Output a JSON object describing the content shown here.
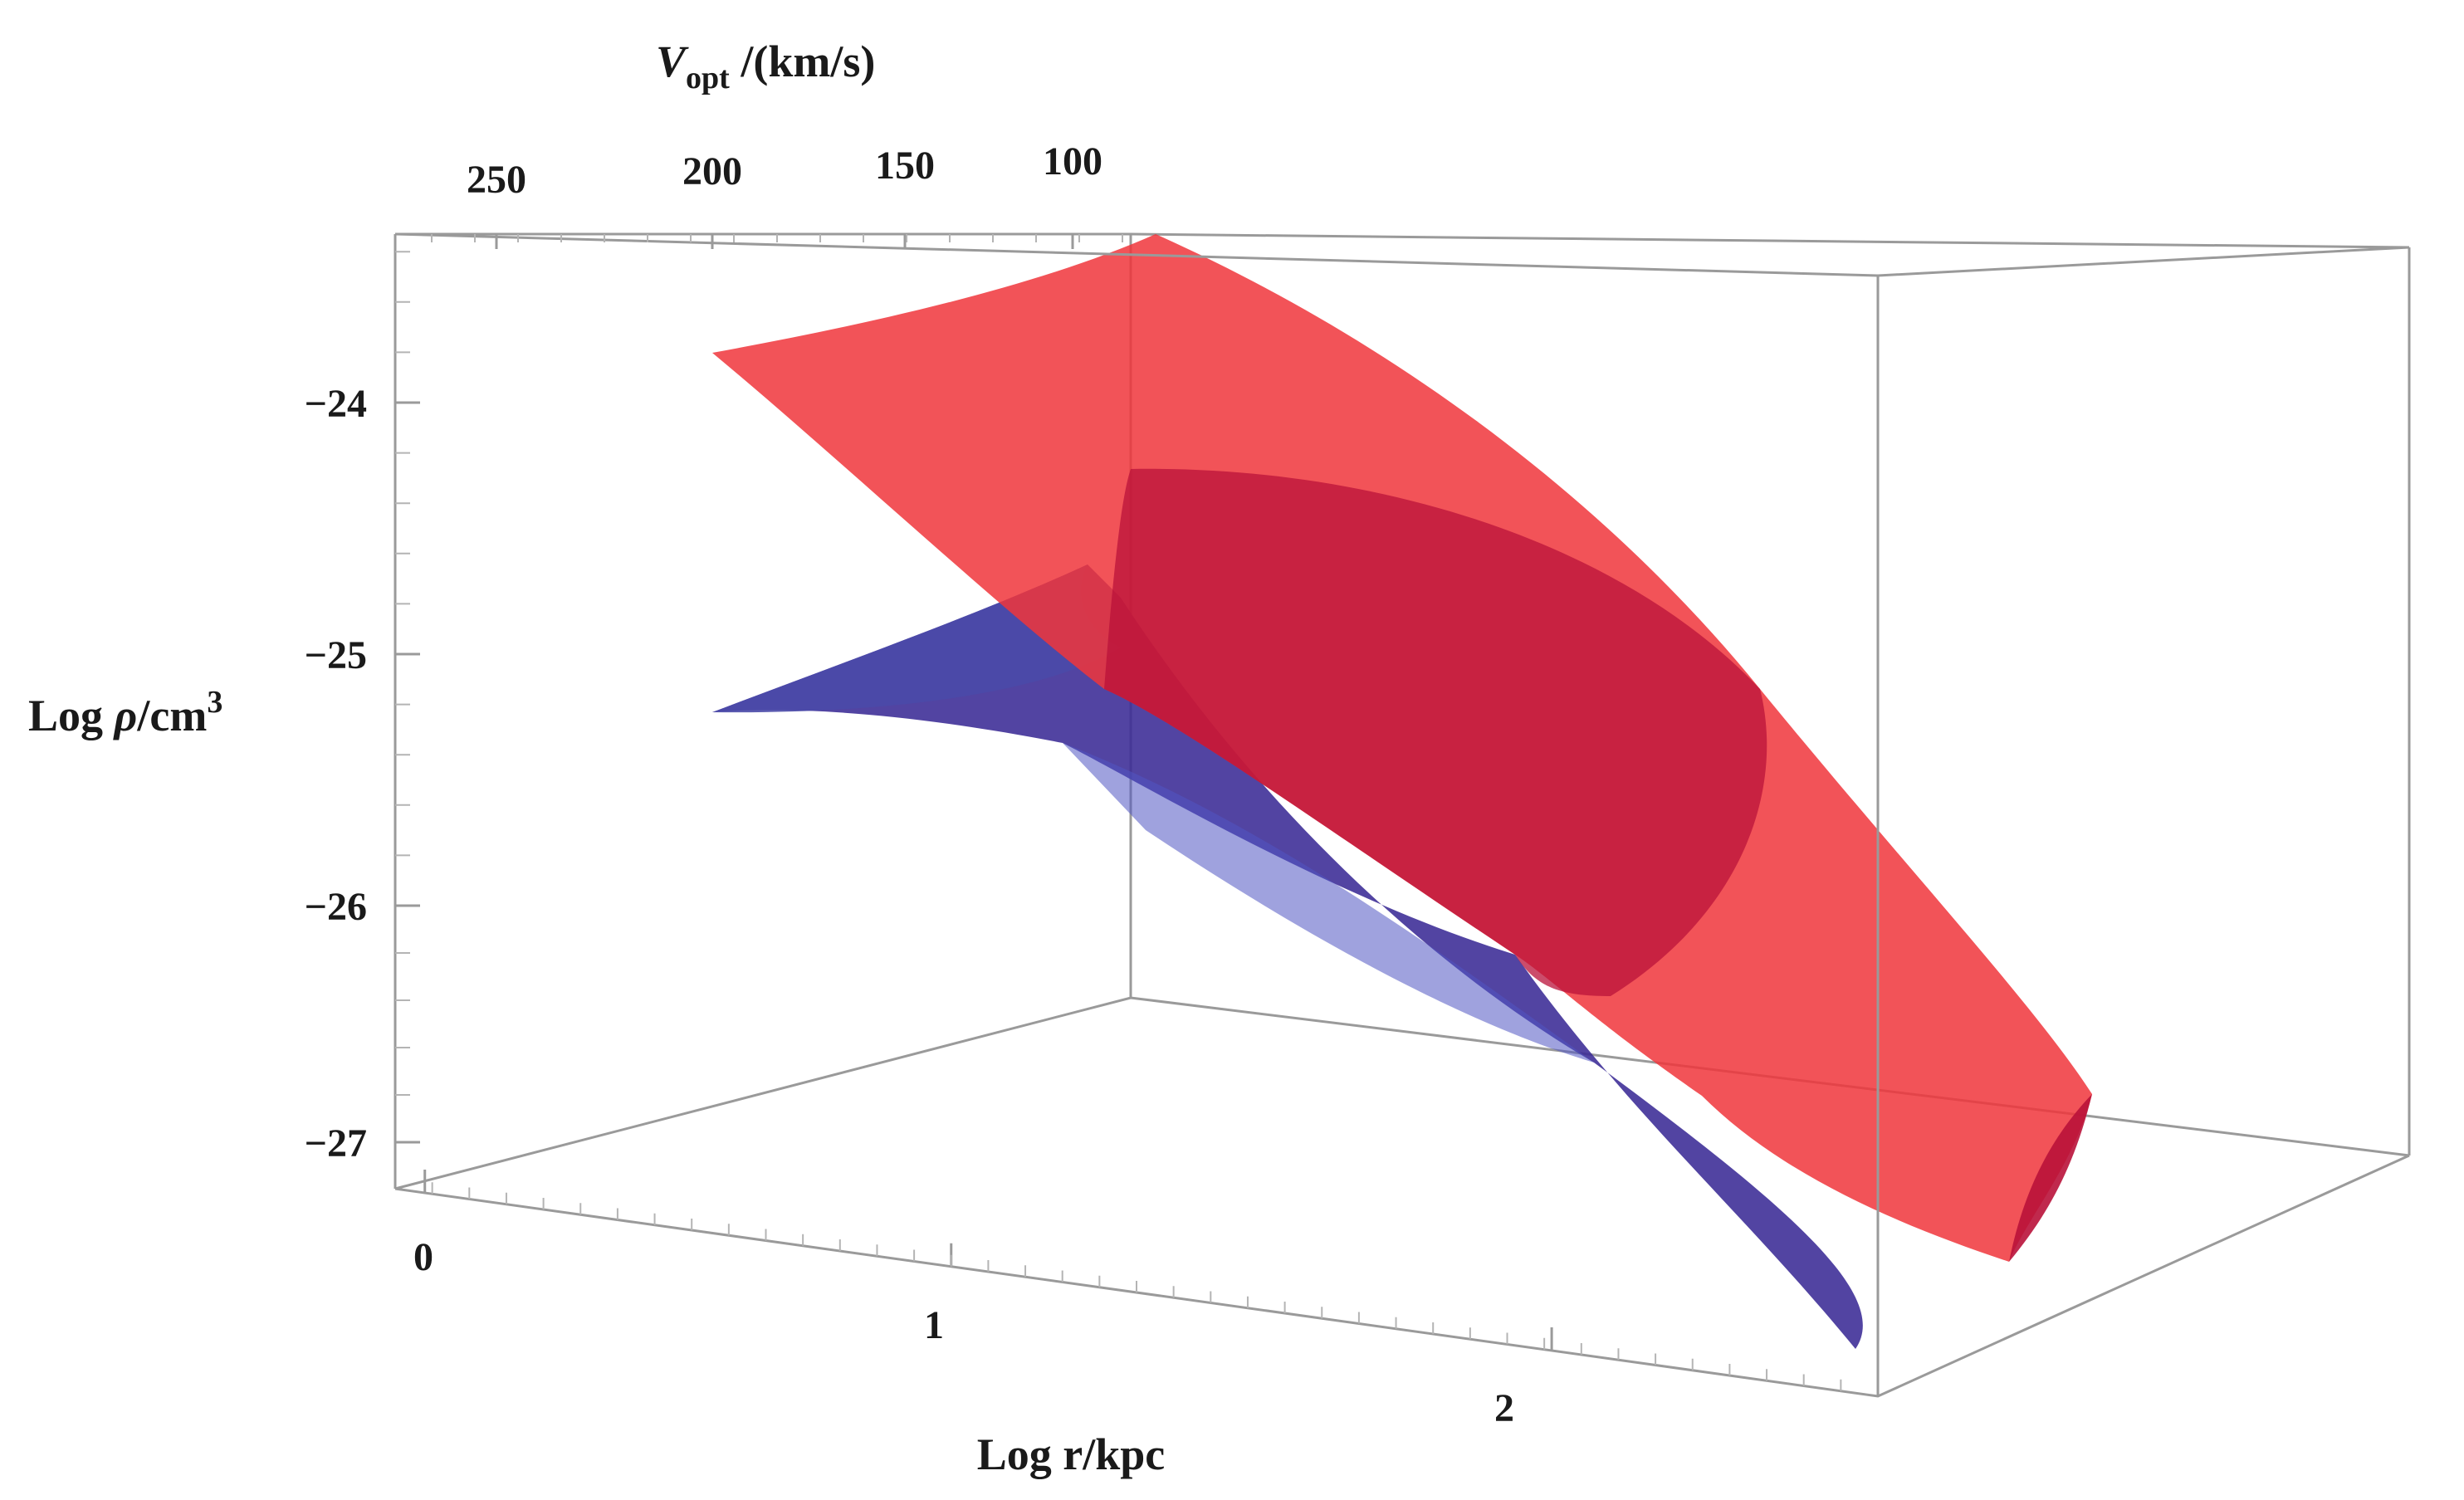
{
  "chart_data": {
    "type": "surface3d",
    "title": "",
    "axes": {
      "x": {
        "label": "Log r/kpc",
        "ticks": [
          "0",
          "1",
          "2"
        ],
        "range": [
          0,
          2.5
        ]
      },
      "y": {
        "label_main": "V",
        "label_sub": "opt",
        "label_unit": " /(km/s)",
        "ticks": [
          "250",
          "200",
          "150",
          "100"
        ],
        "range": [
          80,
          270
        ]
      },
      "z": {
        "label_main": "Log ",
        "label_rho": "ρ",
        "label_unit": "/cm",
        "label_sup": "3",
        "ticks": [
          "−24",
          "−25",
          "−26",
          "−27"
        ],
        "range": [
          -27.2,
          -23.4
        ]
      }
    },
    "series": [
      {
        "color": "#f0353b",
        "opacity": 0.85,
        "z_at_corners": {
          "near_far_corner": -23.8,
          "peak": -23.4,
          "far_end": -26.8
        }
      },
      {
        "color": "#3a2a95",
        "opacity": 0.9,
        "z_at_corners": {
          "near_far_corner": -25.2,
          "far_end": -27.6
        }
      }
    ],
    "grid": false,
    "legend": "none"
  }
}
